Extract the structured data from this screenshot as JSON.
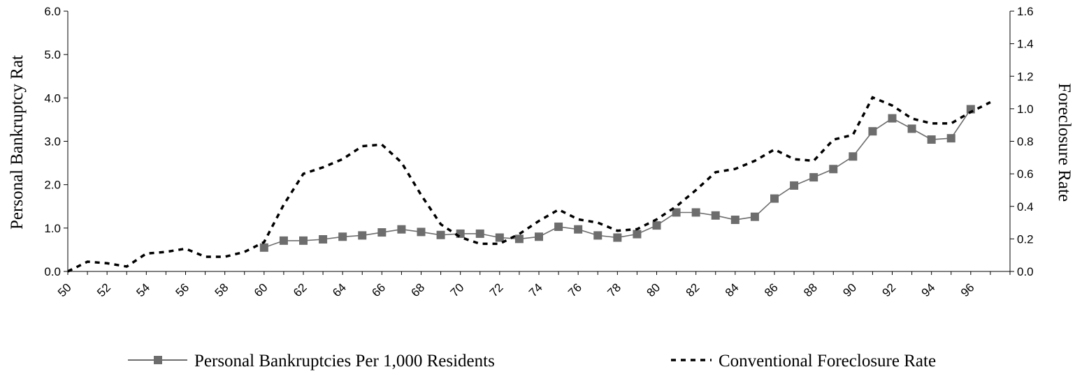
{
  "chart_data": {
    "type": "line",
    "title": "",
    "xlabel": "",
    "ylabel_left": "Personal Bankruptcy Rat",
    "ylabel_right": "Foreclosure Rate",
    "x_ticks": [
      "50",
      "52",
      "54",
      "56",
      "58",
      "60",
      "62",
      "64",
      "66",
      "68",
      "70",
      "72",
      "74",
      "76",
      "78",
      "80",
      "82",
      "84",
      "86",
      "88",
      "90",
      "92",
      "94",
      "96"
    ],
    "x_range": [
      1950,
      1998
    ],
    "y_left": {
      "min": 0,
      "max": 6,
      "ticks": [
        "0.0",
        "1.0",
        "2.0",
        "3.0",
        "4.0",
        "5.0",
        "6.0"
      ]
    },
    "y_right": {
      "min": 0,
      "max": 1.6,
      "ticks": [
        "0.0",
        "0.2",
        "0.4",
        "0.6",
        "0.8",
        "1.0",
        "1.2",
        "1.4",
        "1.6"
      ]
    },
    "grid": false,
    "legend_position": "bottom",
    "series": [
      {
        "name": "Personal Bankruptcies Per 1,000 Residents",
        "axis": "left",
        "style": "solid-square-markers",
        "color": "#6d6d6d",
        "x": [
          1960,
          1961,
          1962,
          1963,
          1964,
          1965,
          1966,
          1967,
          1968,
          1969,
          1970,
          1971,
          1972,
          1973,
          1974,
          1975,
          1976,
          1977,
          1978,
          1979,
          1980,
          1981,
          1982,
          1983,
          1984,
          1985,
          1986,
          1987,
          1988,
          1989,
          1990,
          1991,
          1992,
          1993,
          1994,
          1995,
          1996
        ],
        "values": [
          0.55,
          0.71,
          0.71,
          0.74,
          0.8,
          0.83,
          0.9,
          0.97,
          0.91,
          0.84,
          0.87,
          0.87,
          0.78,
          0.75,
          0.8,
          1.03,
          0.97,
          0.83,
          0.78,
          0.86,
          1.06,
          1.36,
          1.36,
          1.29,
          1.19,
          1.26,
          1.68,
          1.98,
          2.17,
          2.36,
          2.65,
          3.23,
          3.53,
          3.29,
          3.04,
          3.07,
          3.74
        ]
      },
      {
        "name": "Conventional Foreclosure Rate",
        "axis": "right",
        "style": "dashed",
        "color": "#000000",
        "x": [
          1950,
          1951,
          1952,
          1953,
          1954,
          1955,
          1956,
          1957,
          1958,
          1959,
          1960,
          1961,
          1962,
          1963,
          1964,
          1965,
          1966,
          1967,
          1968,
          1969,
          1970,
          1971,
          1972,
          1973,
          1974,
          1975,
          1976,
          1977,
          1978,
          1979,
          1980,
          1981,
          1982,
          1983,
          1984,
          1985,
          1986,
          1987,
          1988,
          1989,
          1990,
          1991,
          1992,
          1993,
          1994,
          1995,
          1996,
          1997
        ],
        "values": [
          0.0,
          0.06,
          0.05,
          0.03,
          0.11,
          0.12,
          0.14,
          0.09,
          0.09,
          0.12,
          0.18,
          0.41,
          0.6,
          0.64,
          0.69,
          0.77,
          0.78,
          0.67,
          0.47,
          0.29,
          0.21,
          0.17,
          0.17,
          0.23,
          0.31,
          0.38,
          0.32,
          0.3,
          0.25,
          0.26,
          0.32,
          0.4,
          0.5,
          0.61,
          0.63,
          0.68,
          0.75,
          0.69,
          0.68,
          0.81,
          0.84,
          1.07,
          1.02,
          0.94,
          0.91,
          0.91,
          0.98,
          1.04
        ]
      }
    ]
  }
}
